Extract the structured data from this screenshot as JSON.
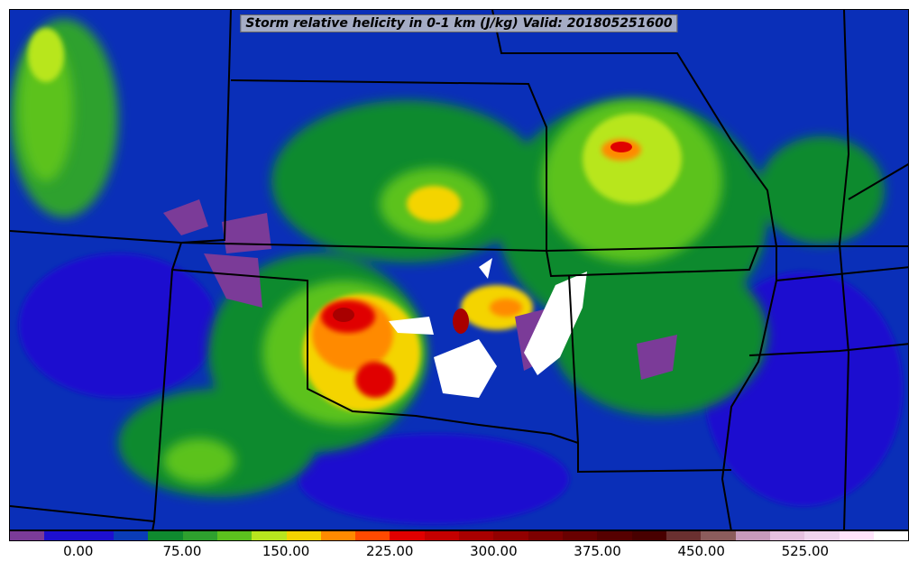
{
  "title": "Storm relative helicity in 0-1 km (J/kg) Valid: 201805251600",
  "colorbar": {
    "colors": [
      "#7b3b98",
      "#1d0fcf",
      "#1d0fcf",
      "#0a3cb8",
      "#0f8a2f",
      "#2ea12e",
      "#5cc21e",
      "#b8e61e",
      "#f4d400",
      "#ff8a00",
      "#ff4a00",
      "#e00000",
      "#c40000",
      "#a80000",
      "#920000",
      "#7c0000",
      "#680000",
      "#560000",
      "#480000",
      "#6a3030",
      "#8c5c5c",
      "#c89abc",
      "#e6c0e0",
      "#f0d4ee",
      "#ffe4fb",
      "#ffffff"
    ],
    "tick_labels": [
      "0.00",
      "75.00",
      "150.00",
      "225.00",
      "300.00",
      "375.00",
      "450.00",
      "525.00"
    ],
    "tick_bins": [
      2,
      5,
      8,
      11,
      14,
      17,
      20,
      23
    ]
  },
  "map": {
    "background_color": "#0a2fb8",
    "boundary_color": "#000000",
    "region": "Central United States"
  }
}
